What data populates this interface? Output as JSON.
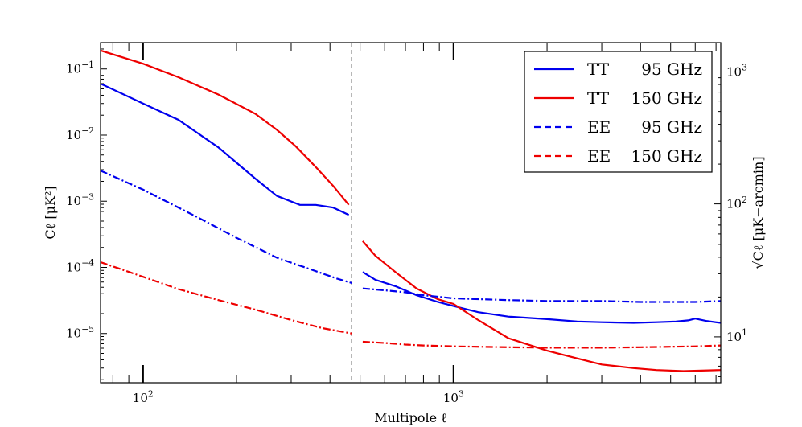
{
  "chart_data": {
    "type": "line",
    "xlabel": "Multipole ℓ",
    "ylabel": "Cℓ [μK²]",
    "ylabel_right": "√Cℓ [μK−arcmin]",
    "xscale": "log",
    "yscale": "log",
    "xlim": [
      73,
      7250
    ],
    "ylim": [
      1.8e-06,
      0.25
    ],
    "x_ticks": [
      {
        "value": 100,
        "base": "10",
        "exp": "2"
      },
      {
        "value": 1000,
        "base": "10",
        "exp": "3"
      }
    ],
    "y_ticks": [
      {
        "value": 0.1,
        "base": "10",
        "exp": "−1"
      },
      {
        "value": 0.01,
        "base": "10",
        "exp": "−2"
      },
      {
        "value": 0.001,
        "base": "10",
        "exp": "−3"
      },
      {
        "value": 0.0001,
        "base": "10",
        "exp": "−4"
      },
      {
        "value": 1e-05,
        "base": "10",
        "exp": "−5"
      }
    ],
    "y2_ticks": [
      {
        "cl_value": 0.09,
        "base": "10",
        "exp": "3"
      },
      {
        "cl_value": 0.00091,
        "base": "10",
        "exp": "2"
      },
      {
        "cl_value": 8.9e-06,
        "base": "10",
        "exp": "1"
      }
    ],
    "vline": 470,
    "legend_position": "top-right",
    "series": [
      {
        "name": "TT",
        "freq": "95 GHz",
        "color": "#0000ee",
        "dash": "solid",
        "x": [
          73,
          100,
          130,
          175,
          230,
          270,
          320,
          360,
          410,
          460,
          510,
          560,
          650,
          760,
          890,
          1000,
          1200,
          1500,
          2000,
          2500,
          3000,
          3800,
          4500,
          5200,
          5700,
          6000,
          6500,
          7250
        ],
        "y": [
          0.06,
          0.03,
          0.017,
          0.0065,
          0.0022,
          0.0012,
          0.00088,
          0.00088,
          0.0008,
          0.00062,
          8.5e-05,
          6.5e-05,
          5.2e-05,
          3.8e-05,
          3e-05,
          2.6e-05,
          2.1e-05,
          1.8e-05,
          1.65e-05,
          1.52e-05,
          1.48e-05,
          1.45e-05,
          1.48e-05,
          1.52e-05,
          1.58e-05,
          1.68e-05,
          1.55e-05,
          1.45e-05
        ]
      },
      {
        "name": "TT",
        "freq": "150 GHz",
        "color": "#ee0000",
        "dash": "solid",
        "x": [
          73,
          100,
          130,
          175,
          230,
          270,
          310,
          360,
          410,
          460,
          510,
          560,
          650,
          760,
          890,
          1000,
          1200,
          1500,
          2000,
          2500,
          3000,
          3800,
          4500,
          5500,
          7250
        ],
        "y": [
          0.19,
          0.12,
          0.075,
          0.041,
          0.021,
          0.012,
          0.0068,
          0.0033,
          0.0017,
          0.00088,
          0.00025,
          0.00015,
          8.5e-05,
          4.8e-05,
          3.3e-05,
          2.8e-05,
          1.6e-05,
          8.5e-06,
          5.5e-06,
          4.2e-06,
          3.4e-06,
          3e-06,
          2.8e-06,
          2.7e-06,
          2.8e-06
        ]
      },
      {
        "name": "EE",
        "freq": "95 GHz",
        "color": "#0000ee",
        "dash": "dashdot",
        "x": [
          73,
          100,
          150,
          200,
          270,
          350,
          420,
          470,
          510,
          600,
          700,
          800,
          1000,
          1500,
          2000,
          3000,
          4000,
          5000,
          6000,
          7250
        ],
        "y": [
          0.0029,
          0.0015,
          0.00057,
          0.00028,
          0.00014,
          9.2e-05,
          6.8e-05,
          5.8e-05,
          4.8e-05,
          4.5e-05,
          4.2e-05,
          3.8e-05,
          3.4e-05,
          3.2e-05,
          3.1e-05,
          3.1e-05,
          3e-05,
          3e-05,
          3e-05,
          3.1e-05
        ]
      },
      {
        "name": "EE",
        "freq": "150 GHz",
        "color": "#ee0000",
        "dash": "dashdot",
        "x": [
          73,
          100,
          130,
          175,
          230,
          300,
          380,
          470,
          510,
          600,
          700,
          800,
          1000,
          1500,
          2000,
          3000,
          4000,
          5000,
          6000,
          7250
        ],
        "y": [
          0.00012,
          7.2e-05,
          4.7e-05,
          3.2e-05,
          2.3e-05,
          1.6e-05,
          1.2e-05,
          1e-05,
          7.5e-06,
          7.2e-06,
          6.8e-06,
          6.6e-06,
          6.4e-06,
          6.2e-06,
          6.1e-06,
          6.1e-06,
          6.2e-06,
          6.3e-06,
          6.4e-06,
          6.6e-06
        ]
      }
    ]
  }
}
